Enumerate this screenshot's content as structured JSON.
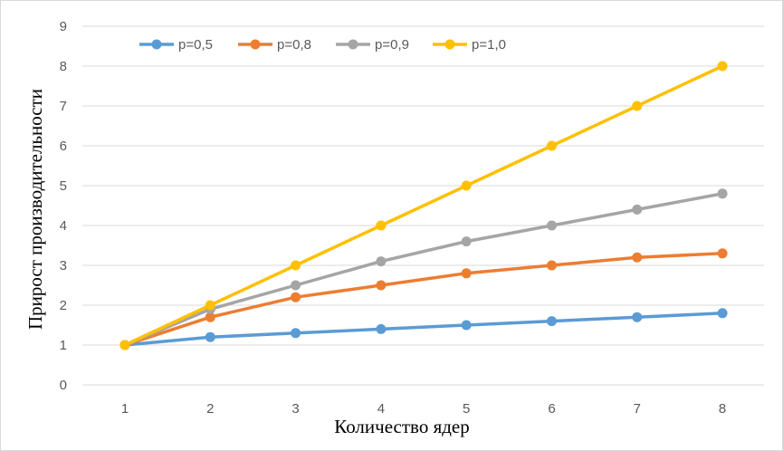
{
  "chart_data": {
    "type": "line",
    "title": "",
    "xlabel": "Количество ядер",
    "ylabel": "Прирост производительности",
    "x": [
      1,
      2,
      3,
      4,
      5,
      6,
      7,
      8
    ],
    "xticks": [
      "1",
      "2",
      "3",
      "4",
      "5",
      "6",
      "7",
      "8"
    ],
    "yticks": [
      "0",
      "1",
      "2",
      "3",
      "4",
      "5",
      "6",
      "7",
      "8",
      "9"
    ],
    "ylim": [
      0,
      9
    ],
    "grid": "horizontal",
    "legend": "top-left",
    "series": [
      {
        "name": "p=0,5",
        "color": "#5b9bd5",
        "values": [
          1.0,
          1.2,
          1.3,
          1.4,
          1.5,
          1.6,
          1.7,
          1.8
        ]
      },
      {
        "name": "p=0,8",
        "color": "#ed7d31",
        "values": [
          1.0,
          1.7,
          2.2,
          2.5,
          2.8,
          3.0,
          3.2,
          3.3
        ]
      },
      {
        "name": "p=0,9",
        "color": "#a5a5a5",
        "values": [
          1.0,
          1.9,
          2.5,
          3.1,
          3.6,
          4.0,
          4.4,
          4.8
        ]
      },
      {
        "name": "p=1,0",
        "color": "#ffc000",
        "values": [
          1.0,
          2.0,
          3.0,
          4.0,
          5.0,
          6.0,
          7.0,
          8.0
        ]
      }
    ]
  }
}
